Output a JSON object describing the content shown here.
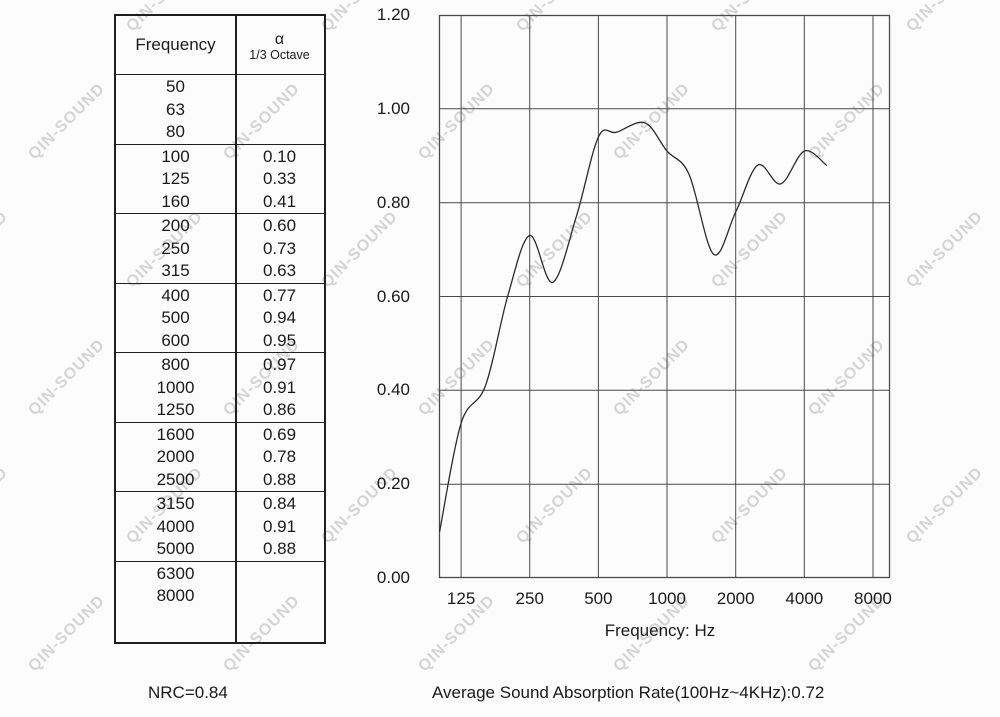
{
  "watermark": {
    "text": "QIN-SOUND"
  },
  "table": {
    "header": {
      "frequency_label": "Frequency",
      "alpha_symbol": "α",
      "alpha_sub": "1/3 Octave"
    },
    "groups": [
      {
        "rows": [
          {
            "freq": "50",
            "alpha": ""
          },
          {
            "freq": "63",
            "alpha": ""
          },
          {
            "freq": "80",
            "alpha": ""
          }
        ]
      },
      {
        "rows": [
          {
            "freq": "100",
            "alpha": "0.10"
          },
          {
            "freq": "125",
            "alpha": "0.33"
          },
          {
            "freq": "160",
            "alpha": "0.41"
          }
        ]
      },
      {
        "rows": [
          {
            "freq": "200",
            "alpha": "0.60"
          },
          {
            "freq": "250",
            "alpha": "0.73"
          },
          {
            "freq": "315",
            "alpha": "0.63"
          }
        ]
      },
      {
        "rows": [
          {
            "freq": "400",
            "alpha": "0.77"
          },
          {
            "freq": "500",
            "alpha": "0.94"
          },
          {
            "freq": "600",
            "alpha": "0.95"
          }
        ]
      },
      {
        "rows": [
          {
            "freq": "800",
            "alpha": "0.97"
          },
          {
            "freq": "1000",
            "alpha": "0.91"
          },
          {
            "freq": "1250",
            "alpha": "0.86"
          }
        ]
      },
      {
        "rows": [
          {
            "freq": "1600",
            "alpha": "0.69"
          },
          {
            "freq": "2000",
            "alpha": "0.78"
          },
          {
            "freq": "2500",
            "alpha": "0.88"
          }
        ]
      },
      {
        "rows": [
          {
            "freq": "3150",
            "alpha": "0.84"
          },
          {
            "freq": "4000",
            "alpha": "0.91"
          },
          {
            "freq": "5000",
            "alpha": "0.88"
          }
        ]
      },
      {
        "rows": [
          {
            "freq": "6300",
            "alpha": ""
          },
          {
            "freq": "8000",
            "alpha": ""
          }
        ]
      }
    ]
  },
  "chart_data": {
    "type": "line",
    "title": "",
    "xlabel": "Frequency: Hz",
    "ylabel": "",
    "x_scale": "log",
    "xlim": [
      100,
      9500
    ],
    "ylim": [
      0,
      1.2
    ],
    "grid": true,
    "legend": "none",
    "x_ticks": [
      {
        "label": "125",
        "value": 125
      },
      {
        "label": "250",
        "value": 250
      },
      {
        "label": "500",
        "value": 500
      },
      {
        "label": "1000",
        "value": 1000
      },
      {
        "label": "2000",
        "value": 2000
      },
      {
        "label": "4000",
        "value": 4000
      },
      {
        "label": "8000",
        "value": 8000
      }
    ],
    "y_ticks": [
      {
        "label": "1.20",
        "value": 1.2
      },
      {
        "label": "1.00",
        "value": 1.0
      },
      {
        "label": "0.80",
        "value": 0.8
      },
      {
        "label": "0.60",
        "value": 0.6
      },
      {
        "label": "0.40",
        "value": 0.4
      },
      {
        "label": "0.20",
        "value": 0.2
      },
      {
        "label": "0.00",
        "value": 0.0
      }
    ],
    "series": [
      {
        "name": "",
        "x": [
          100,
          125,
          160,
          200,
          250,
          315,
          400,
          500,
          600,
          800,
          1000,
          1250,
          1600,
          2000,
          2500,
          3150,
          4000,
          5000
        ],
        "y": [
          0.1,
          0.33,
          0.41,
          0.6,
          0.73,
          0.63,
          0.77,
          0.94,
          0.95,
          0.97,
          0.91,
          0.86,
          0.69,
          0.78,
          0.88,
          0.84,
          0.91,
          0.88
        ],
        "color": "#2b2b2b"
      }
    ]
  },
  "captions": {
    "nrc": "NRC=0.84",
    "average": "Average Sound Absorption Rate(100Hz~4KHz):0.72"
  },
  "colors": {
    "grid": "#4a4a4a",
    "table_border": "#1f1f1f",
    "watermark": "#d4d4d4",
    "background": "#fcfcfc"
  }
}
